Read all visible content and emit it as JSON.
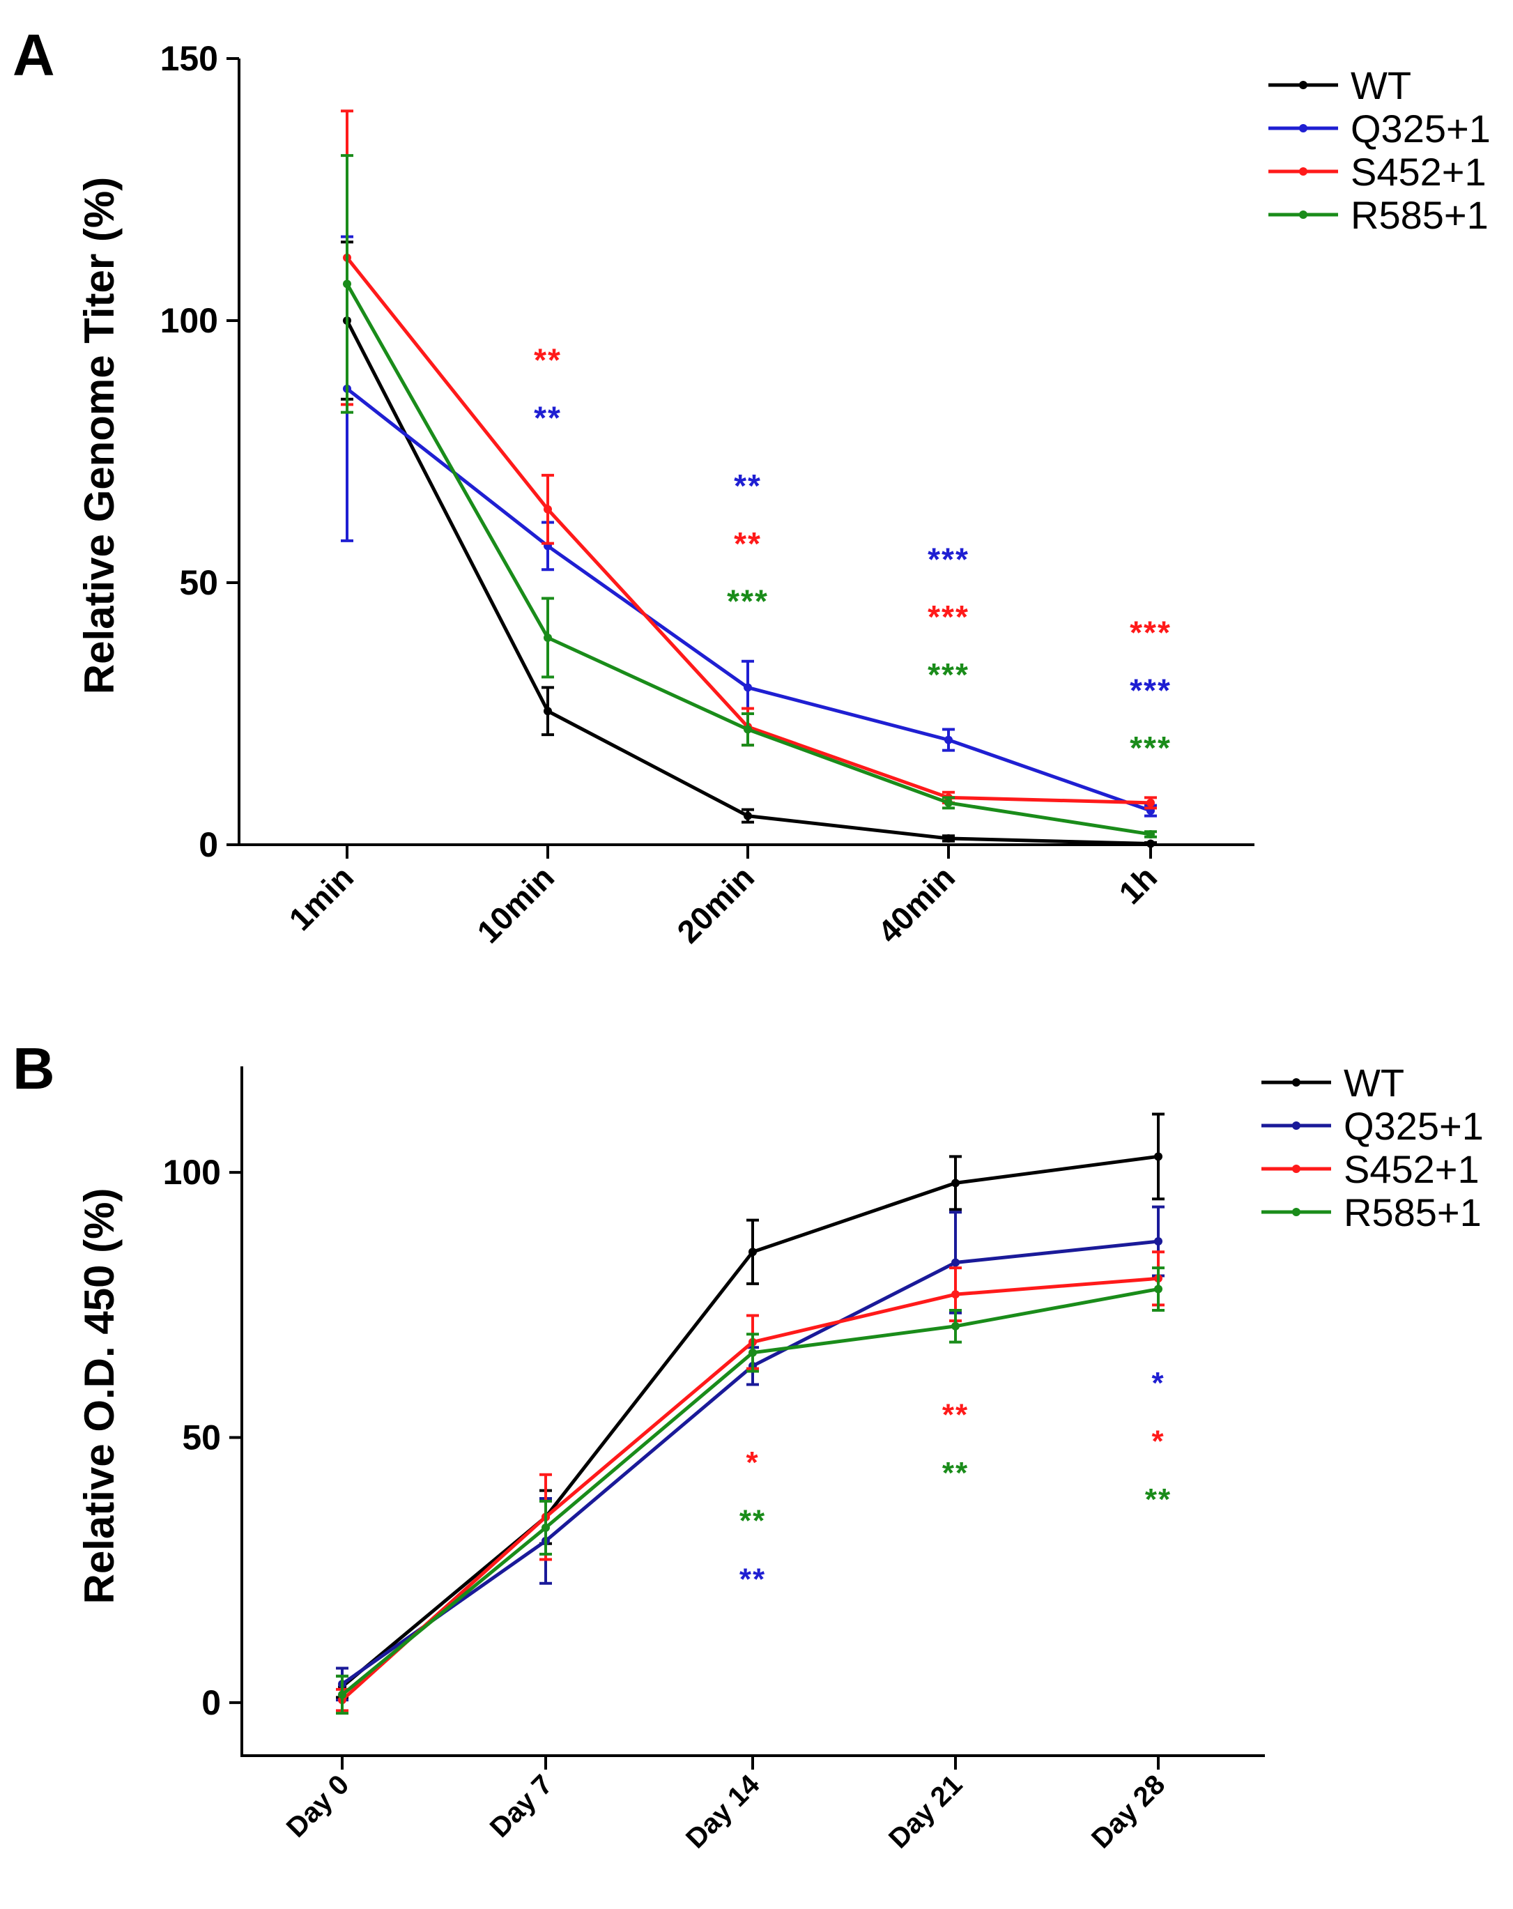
{
  "chart_data": [
    {
      "panel": "A",
      "type": "line",
      "categories": [
        "1min",
        "10min",
        "20min",
        "40min",
        "1h"
      ],
      "ylabel": "Relative Genome Titer (%)",
      "xlabel": "",
      "ylim": [
        0,
        150
      ],
      "yticks": [
        0,
        50,
        100,
        150
      ],
      "legend_position": "top-right",
      "series": [
        {
          "name": "WT",
          "color": "#000000",
          "values": [
            100,
            25.5,
            5.5,
            1.2,
            0.2
          ],
          "errors": [
            15,
            4.5,
            1.2,
            0.5,
            0.2
          ]
        },
        {
          "name": "Q325+1",
          "color": "#1f1fd2",
          "values": [
            87,
            57,
            30,
            20,
            6.5
          ],
          "errors": [
            29,
            4.5,
            5,
            2,
            1
          ]
        },
        {
          "name": "S452+1",
          "color": "#ff1a1a",
          "values": [
            112,
            64,
            22.5,
            9,
            8
          ],
          "errors": [
            28,
            6.5,
            3.5,
            1,
            1
          ]
        },
        {
          "name": "R585+1",
          "color": "#1a8c1a",
          "values": [
            107,
            39.5,
            22,
            8,
            2
          ],
          "errors": [
            24.5,
            7.5,
            3,
            1,
            0.5
          ]
        }
      ],
      "annotations": [
        {
          "cat": 1,
          "y": 93,
          "text": "**",
          "color": "#ff1a1a"
        },
        {
          "cat": 1,
          "y": 82,
          "text": "**",
          "color": "#1f1fd2"
        },
        {
          "cat": 2,
          "y": 69,
          "text": "**",
          "color": "#1f1fd2"
        },
        {
          "cat": 2,
          "y": 58,
          "text": "**",
          "color": "#ff1a1a"
        },
        {
          "cat": 2,
          "y": 47,
          "text": "***",
          "color": "#1a8c1a"
        },
        {
          "cat": 3,
          "y": 55,
          "text": "***",
          "color": "#1f1fd2"
        },
        {
          "cat": 3,
          "y": 44,
          "text": "***",
          "color": "#ff1a1a"
        },
        {
          "cat": 3,
          "y": 33,
          "text": "***",
          "color": "#1a8c1a"
        },
        {
          "cat": 4,
          "y": 41,
          "text": "***",
          "color": "#ff1a1a"
        },
        {
          "cat": 4,
          "y": 30,
          "text": "***",
          "color": "#1f1fd2"
        },
        {
          "cat": 4,
          "y": 19,
          "text": "***",
          "color": "#1a8c1a"
        }
      ]
    },
    {
      "panel": "B",
      "type": "line",
      "categories": [
        "Day 0",
        "Day 7",
        "Day 14",
        "Day 21",
        "Day 28"
      ],
      "ylabel": "Relative O.D. 450 (%)",
      "xlabel": "",
      "ylim": [
        -10,
        120
      ],
      "yticks": [
        0,
        50,
        100
      ],
      "legend_position": "top-right",
      "series": [
        {
          "name": "WT",
          "color": "#000000",
          "values": [
            3,
            35,
            85,
            98,
            103
          ],
          "errors": [
            2,
            5,
            6,
            5,
            8
          ]
        },
        {
          "name": "Q325+1",
          "color": "#1a1a99",
          "values": [
            3.5,
            30.5,
            63.5,
            83,
            87
          ],
          "errors": [
            3,
            8,
            3.5,
            9.5,
            6.5
          ]
        },
        {
          "name": "S452+1",
          "color": "#ff1a1a",
          "values": [
            0.5,
            35,
            68,
            77,
            80
          ],
          "errors": [
            2,
            8,
            5,
            5,
            5
          ]
        },
        {
          "name": "R585+1",
          "color": "#1a8c1a",
          "values": [
            1.5,
            33,
            66,
            71,
            78
          ],
          "errors": [
            3.5,
            5,
            3.5,
            3,
            4
          ]
        }
      ],
      "annotations": [
        {
          "cat": 2,
          "y": 46,
          "text": "*",
          "color": "#ff1a1a"
        },
        {
          "cat": 2,
          "y": 35,
          "text": "**",
          "color": "#1a8c1a"
        },
        {
          "cat": 2,
          "y": 24,
          "text": "**",
          "color": "#1f1fd2"
        },
        {
          "cat": 3,
          "y": 55,
          "text": "**",
          "color": "#ff1a1a"
        },
        {
          "cat": 3,
          "y": 44,
          "text": "**",
          "color": "#1a8c1a"
        },
        {
          "cat": 4,
          "y": 61,
          "text": "*",
          "color": "#1f1fd2"
        },
        {
          "cat": 4,
          "y": 50,
          "text": "*",
          "color": "#ff1a1a"
        },
        {
          "cat": 4,
          "y": 39,
          "text": "**",
          "color": "#1a8c1a"
        }
      ]
    }
  ]
}
